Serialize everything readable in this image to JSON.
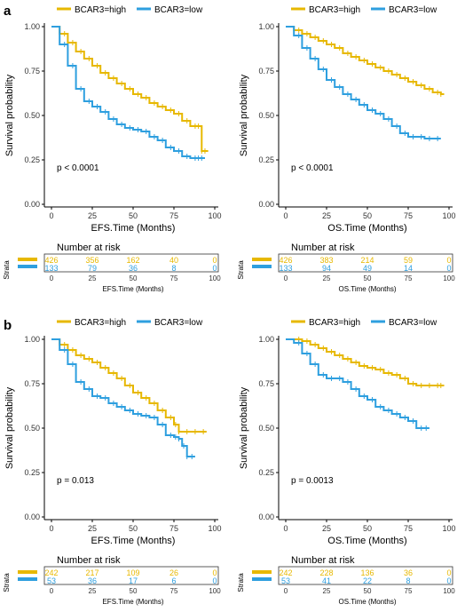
{
  "colors": {
    "high": "#E7B800",
    "low": "#2E9FDF",
    "axis": "#000000",
    "frame": "#333333"
  },
  "common": {
    "legend_high": "BCAR3=high",
    "legend_low": "BCAR3=low",
    "ylabel": "Survival probability",
    "risk_title": "Number at risk",
    "strata_label": "Strata",
    "x_ticks": [
      "0",
      "25",
      "50",
      "75",
      "100"
    ],
    "y_ticks": [
      "0.00",
      "0.25",
      "0.50",
      "0.75",
      "1.00"
    ]
  },
  "panels": [
    {
      "label": "a"
    },
    {
      "label": "b"
    }
  ],
  "chart_data": [
    {
      "type": "line",
      "panel": "a",
      "xlabel": "EFS.Time (Months)",
      "ylabel": "Survival probability",
      "risk_xlabel": "EFS.Time (Months)",
      "xlim": [
        0,
        100
      ],
      "ylim": [
        0,
        1
      ],
      "pvalue": "p < 0.0001",
      "series": [
        {
          "name": "BCAR3=high",
          "color": "#E7B800",
          "x": [
            0,
            5,
            10,
            15,
            20,
            25,
            30,
            35,
            40,
            45,
            50,
            55,
            60,
            65,
            70,
            75,
            80,
            85,
            90,
            92,
            94,
            96
          ],
          "y": [
            1.0,
            0.96,
            0.91,
            0.86,
            0.82,
            0.78,
            0.74,
            0.71,
            0.68,
            0.65,
            0.62,
            0.6,
            0.57,
            0.55,
            0.53,
            0.51,
            0.47,
            0.44,
            0.44,
            0.3,
            0.3,
            0.3
          ],
          "risk": [
            "426",
            "356",
            "162",
            "40",
            "0"
          ]
        },
        {
          "name": "BCAR3=low",
          "color": "#2E9FDF",
          "x": [
            0,
            5,
            10,
            15,
            20,
            25,
            30,
            35,
            40,
            45,
            50,
            55,
            60,
            65,
            70,
            75,
            80,
            85,
            90,
            92,
            94
          ],
          "y": [
            1.0,
            0.9,
            0.78,
            0.65,
            0.58,
            0.55,
            0.52,
            0.48,
            0.45,
            0.43,
            0.42,
            0.41,
            0.38,
            0.36,
            0.32,
            0.3,
            0.27,
            0.26,
            0.26,
            0.26,
            0.26
          ],
          "risk": [
            "133",
            "79",
            "36",
            "8",
            "0"
          ]
        }
      ]
    },
    {
      "type": "line",
      "panel": "a",
      "xlabel": "OS.Time (Months)",
      "ylabel": "Survival probability",
      "risk_xlabel": "OS.Time (Months)",
      "xlim": [
        0,
        100
      ],
      "ylim": [
        0,
        1
      ],
      "pvalue": "p < 0.0001",
      "series": [
        {
          "name": "BCAR3=high",
          "color": "#E7B800",
          "x": [
            0,
            5,
            10,
            15,
            20,
            25,
            30,
            35,
            40,
            45,
            50,
            55,
            60,
            65,
            70,
            75,
            80,
            85,
            90,
            95,
            97
          ],
          "y": [
            1.0,
            0.98,
            0.96,
            0.94,
            0.92,
            0.9,
            0.88,
            0.85,
            0.83,
            0.81,
            0.79,
            0.77,
            0.75,
            0.73,
            0.71,
            0.69,
            0.67,
            0.65,
            0.63,
            0.62,
            0.62
          ],
          "risk": [
            "426",
            "383",
            "214",
            "59",
            "0"
          ]
        },
        {
          "name": "BCAR3=low",
          "color": "#2E9FDF",
          "x": [
            0,
            5,
            10,
            15,
            20,
            25,
            30,
            35,
            40,
            45,
            50,
            55,
            60,
            65,
            70,
            75,
            80,
            85,
            90,
            95
          ],
          "y": [
            1.0,
            0.95,
            0.88,
            0.82,
            0.76,
            0.7,
            0.66,
            0.62,
            0.59,
            0.56,
            0.53,
            0.51,
            0.48,
            0.44,
            0.4,
            0.38,
            0.38,
            0.37,
            0.37,
            0.37
          ],
          "risk": [
            "133",
            "94",
            "49",
            "14",
            "0"
          ]
        }
      ]
    },
    {
      "type": "line",
      "panel": "b",
      "xlabel": "EFS.Time (Months)",
      "ylabel": "Survival probability",
      "risk_xlabel": "EFS.Time (Months)",
      "xlim": [
        0,
        100
      ],
      "ylim": [
        0,
        1
      ],
      "pvalue": "p = 0.013",
      "series": [
        {
          "name": "BCAR3=high",
          "color": "#E7B800",
          "x": [
            0,
            5,
            10,
            15,
            20,
            25,
            30,
            35,
            40,
            45,
            50,
            55,
            60,
            65,
            70,
            75,
            78,
            80,
            85,
            90,
            95
          ],
          "y": [
            1.0,
            0.97,
            0.94,
            0.91,
            0.89,
            0.87,
            0.84,
            0.81,
            0.78,
            0.74,
            0.7,
            0.67,
            0.64,
            0.6,
            0.56,
            0.52,
            0.48,
            0.48,
            0.48,
            0.48,
            0.48
          ],
          "risk": [
            "242",
            "217",
            "109",
            "26",
            "0"
          ]
        },
        {
          "name": "BCAR3=low",
          "color": "#2E9FDF",
          "x": [
            0,
            5,
            10,
            15,
            20,
            25,
            30,
            35,
            40,
            45,
            50,
            55,
            60,
            65,
            70,
            75,
            78,
            80,
            83,
            85,
            88
          ],
          "y": [
            1.0,
            0.94,
            0.86,
            0.76,
            0.72,
            0.68,
            0.67,
            0.64,
            0.62,
            0.6,
            0.58,
            0.57,
            0.56,
            0.52,
            0.46,
            0.45,
            0.44,
            0.4,
            0.34,
            0.34,
            0.34
          ],
          "risk": [
            "53",
            "36",
            "17",
            "6",
            "0"
          ]
        }
      ]
    },
    {
      "type": "line",
      "panel": "b",
      "xlabel": "OS.Time (Months)",
      "ylabel": "Survival probability",
      "risk_xlabel": "OS.Time (Months)",
      "xlim": [
        0,
        100
      ],
      "ylim": [
        0,
        1
      ],
      "pvalue": "p = 0.0013",
      "series": [
        {
          "name": "BCAR3=high",
          "color": "#E7B800",
          "x": [
            0,
            5,
            10,
            15,
            20,
            25,
            30,
            35,
            40,
            45,
            50,
            55,
            60,
            65,
            70,
            75,
            80,
            85,
            90,
            95,
            97
          ],
          "y": [
            1.0,
            1.0,
            0.99,
            0.97,
            0.95,
            0.93,
            0.91,
            0.89,
            0.87,
            0.85,
            0.84,
            0.83,
            0.81,
            0.8,
            0.78,
            0.75,
            0.74,
            0.74,
            0.74,
            0.74,
            0.74
          ],
          "risk": [
            "242",
            "228",
            "136",
            "36",
            "0"
          ]
        },
        {
          "name": "BCAR3=low",
          "color": "#2E9FDF",
          "x": [
            0,
            5,
            10,
            15,
            20,
            25,
            30,
            35,
            40,
            45,
            50,
            55,
            60,
            65,
            70,
            75,
            80,
            85,
            88
          ],
          "y": [
            1.0,
            0.98,
            0.92,
            0.86,
            0.8,
            0.78,
            0.78,
            0.76,
            0.72,
            0.68,
            0.66,
            0.62,
            0.6,
            0.58,
            0.56,
            0.54,
            0.5,
            0.5,
            0.5
          ],
          "risk": [
            "53",
            "41",
            "22",
            "8",
            "0"
          ]
        }
      ]
    }
  ]
}
